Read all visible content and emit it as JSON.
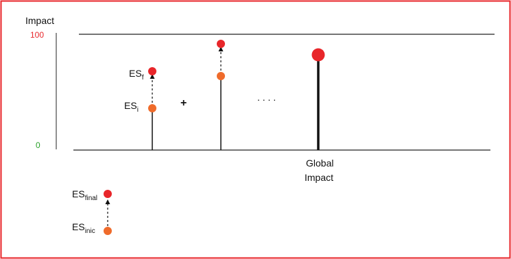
{
  "axis": {
    "title": "Impact",
    "max_label": "100",
    "min_label": "0",
    "max_color": "#e8262a",
    "min_color": "#2aa12a"
  },
  "stage1": {
    "final_label": "ES",
    "final_sub": "f",
    "initial_label": "ES",
    "initial_sub": "i"
  },
  "plus": "+",
  "ellipsis": ". . . .",
  "global": {
    "line1": "Global",
    "line2": "Impact"
  },
  "legend": {
    "final_label": "ES",
    "final_sub": "final",
    "initial_label": "ES",
    "initial_sub": "inic"
  },
  "colors": {
    "frame": "#e8262a",
    "final_dot": "#e8262a",
    "initial_dot": "#ef6b2b"
  }
}
